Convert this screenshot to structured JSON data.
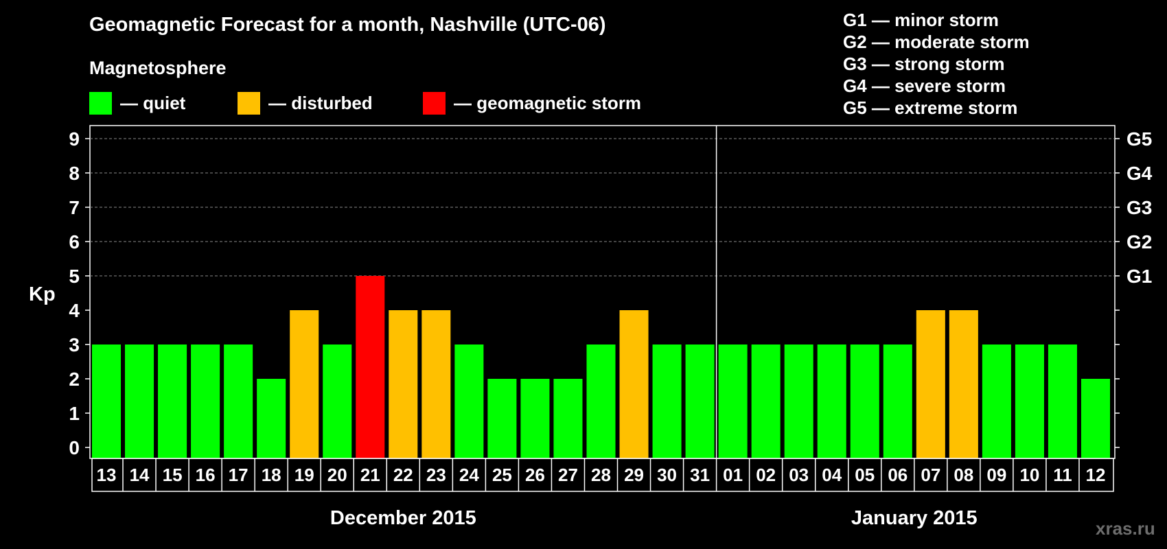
{
  "title": "Geomagnetic Forecast for a month, Nashville (UTC-06)",
  "subtitle": "Magnetosphere",
  "legend": [
    {
      "label": "— quiet",
      "color": "#00ff00"
    },
    {
      "label": "— disturbed",
      "color": "#ffc000"
    },
    {
      "label": "— geomagnetic storm",
      "color": "#ff0000"
    }
  ],
  "g_legend": [
    "G1 — minor storm",
    "G2 — moderate storm",
    "G3 — strong storm",
    "G4 — severe storm",
    "G5 — extreme storm"
  ],
  "watermark": "xras.ru",
  "chart_data": {
    "type": "bar",
    "ylabel": "Kp",
    "ylim": [
      0,
      9
    ],
    "yticks": [
      "0",
      "1",
      "2",
      "3",
      "4",
      "5",
      "6",
      "7",
      "8",
      "9"
    ],
    "right_ticks": [
      {
        "kp": 5,
        "label": "G1"
      },
      {
        "kp": 6,
        "label": "G2"
      },
      {
        "kp": 7,
        "label": "G3"
      },
      {
        "kp": 8,
        "label": "G4"
      },
      {
        "kp": 9,
        "label": "G5"
      }
    ],
    "grid": "dashed horizontal at Kp 5-9",
    "categories": [
      "13",
      "14",
      "15",
      "16",
      "17",
      "18",
      "19",
      "20",
      "21",
      "22",
      "23",
      "24",
      "25",
      "26",
      "27",
      "28",
      "29",
      "30",
      "31",
      "01",
      "02",
      "03",
      "04",
      "05",
      "06",
      "07",
      "08",
      "09",
      "10",
      "11",
      "12"
    ],
    "values": [
      3,
      3,
      3,
      3,
      3,
      2,
      4,
      3,
      5,
      4,
      4,
      3,
      2,
      2,
      2,
      3,
      4,
      3,
      3,
      3,
      3,
      3,
      3,
      3,
      3,
      4,
      4,
      3,
      3,
      3,
      2
    ],
    "colors": [
      "#00ff00",
      "#00ff00",
      "#00ff00",
      "#00ff00",
      "#00ff00",
      "#00ff00",
      "#ffc000",
      "#00ff00",
      "#ff0000",
      "#ffc000",
      "#ffc000",
      "#00ff00",
      "#00ff00",
      "#00ff00",
      "#00ff00",
      "#00ff00",
      "#ffc000",
      "#00ff00",
      "#00ff00",
      "#00ff00",
      "#00ff00",
      "#00ff00",
      "#00ff00",
      "#00ff00",
      "#00ff00",
      "#ffc000",
      "#ffc000",
      "#00ff00",
      "#00ff00",
      "#00ff00",
      "#00ff00"
    ],
    "month_groups": [
      {
        "label": "December 2015",
        "count": 19
      },
      {
        "label": "January 2015",
        "count": 12
      }
    ]
  }
}
